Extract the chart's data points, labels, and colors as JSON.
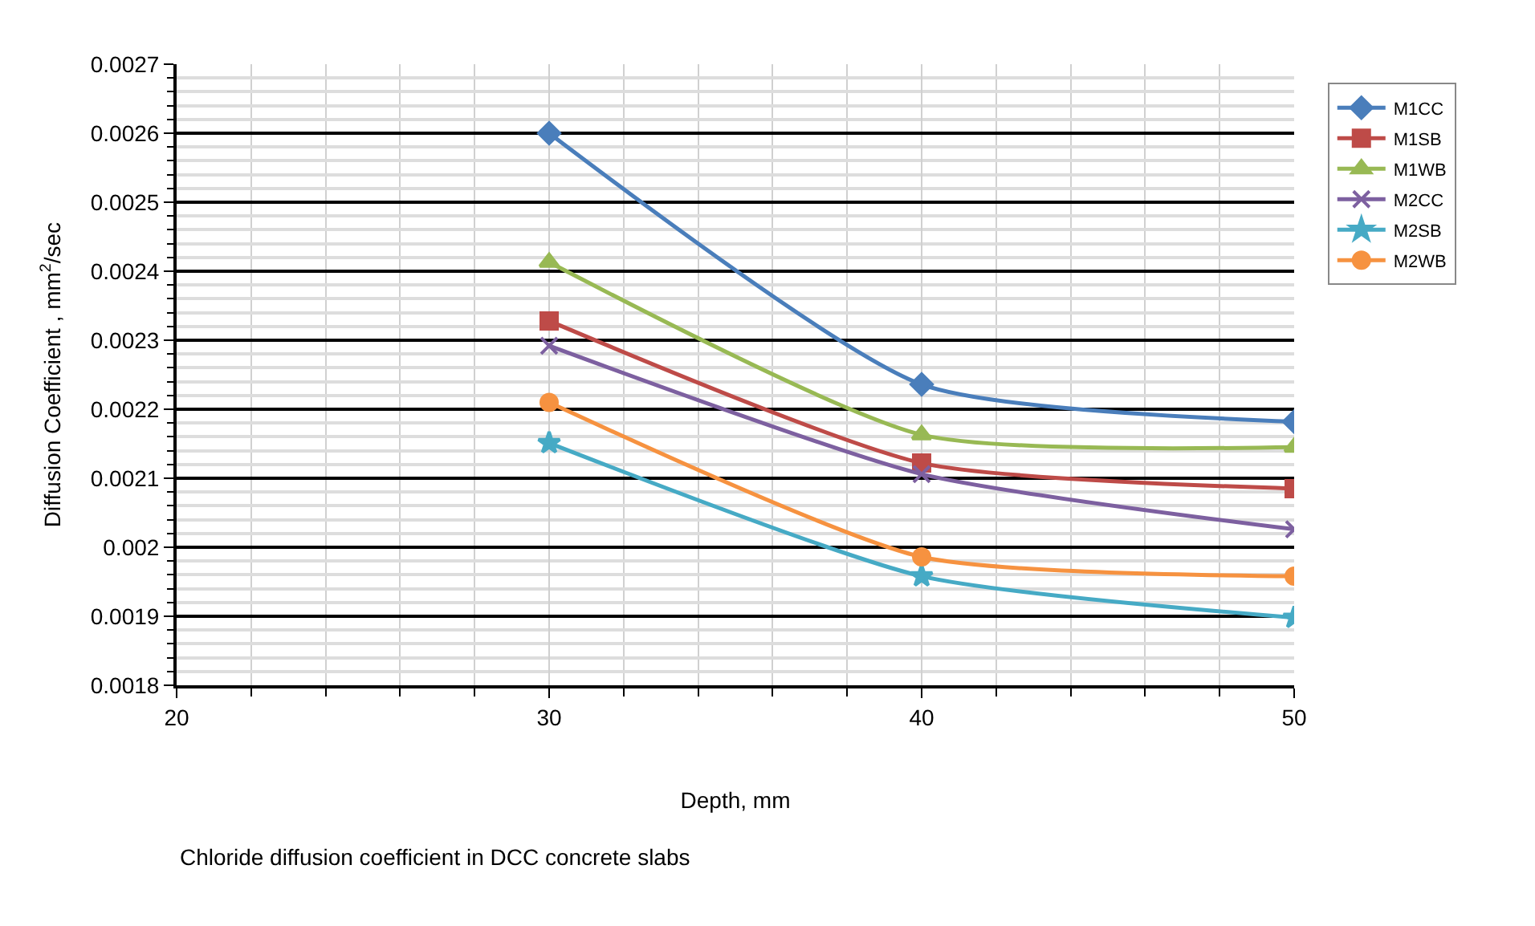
{
  "chart_data": {
    "type": "line",
    "xlabel": "Depth, mm",
    "ylabel": "Diffusion Coefficient , mm$^{2}$/sec",
    "annotations": [
      "Chloride diffusion coefficient in DCC concrete slabs"
    ],
    "x": [
      30,
      40,
      50
    ],
    "series": [
      {
        "name": "M1CC",
        "color": "#4a7ebb",
        "marker": "diamond",
        "values": [
          0.0026,
          0.002236,
          0.002182
        ]
      },
      {
        "name": "M1SB",
        "color": "#be4b48",
        "marker": "square",
        "values": [
          0.002328,
          0.002122,
          0.002085
        ]
      },
      {
        "name": "M1WB",
        "color": "#98b954",
        "marker": "triangle",
        "values": [
          0.002413,
          0.002163,
          0.002145
        ]
      },
      {
        "name": "M2CC",
        "color": "#7d60a0",
        "marker": "cross",
        "values": [
          0.002292,
          0.002106,
          0.002026
        ]
      },
      {
        "name": "M2SB",
        "color": "#46aac5",
        "marker": "star",
        "values": [
          0.002151,
          0.001958,
          0.001898
        ]
      },
      {
        "name": "M2WB",
        "color": "#f69240",
        "marker": "circle",
        "values": [
          0.00221,
          0.001986,
          0.001958
        ]
      }
    ],
    "xlim": [
      20,
      50
    ],
    "xticks": [
      20,
      30,
      40,
      50
    ],
    "ylim": [
      0.0018,
      0.0027
    ],
    "yticks": [
      0.0018,
      0.0019,
      0.002,
      0.0021,
      0.0022,
      0.0023,
      0.0024,
      0.0025,
      0.0026,
      0.0027
    ],
    "grid": true,
    "legend": "right",
    "line_style": "solid"
  }
}
